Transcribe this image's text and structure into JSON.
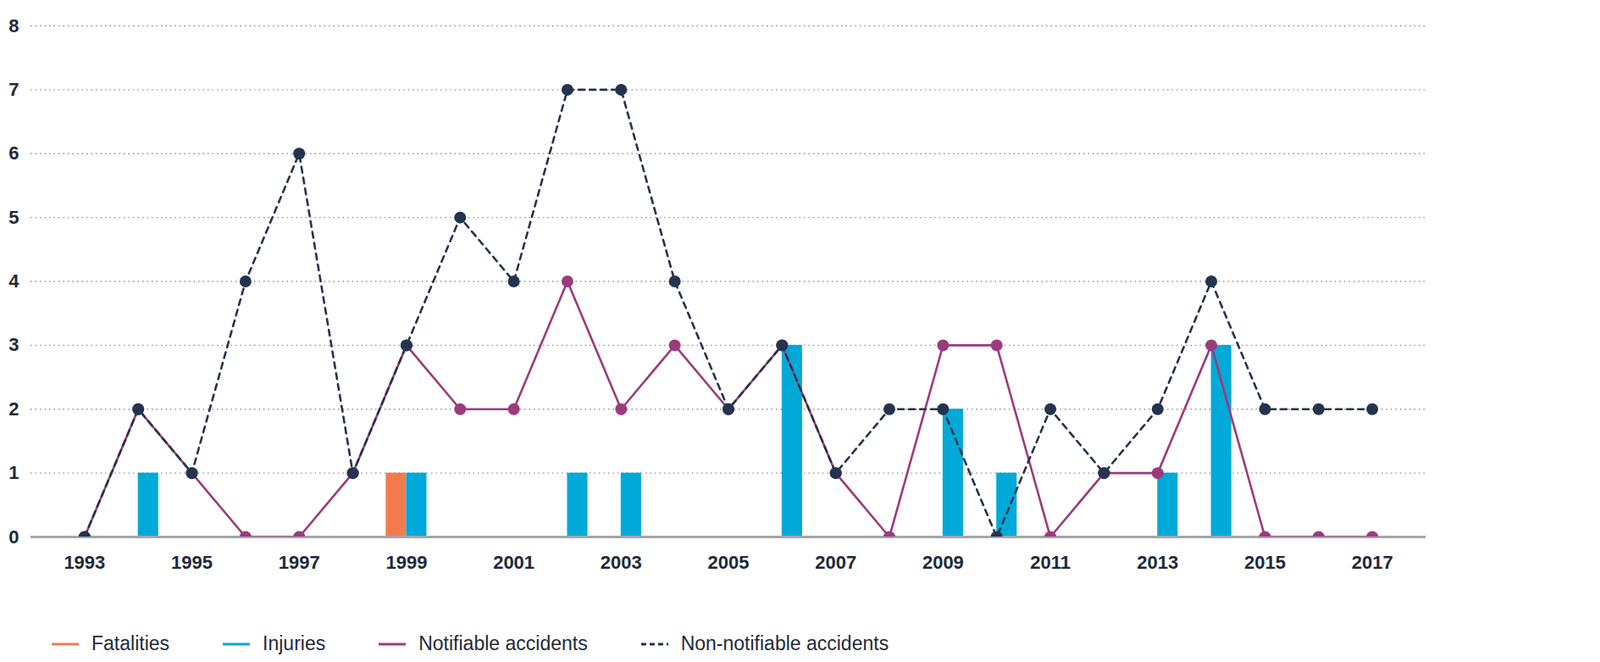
{
  "chart_data": {
    "type": "combo",
    "x": [
      1993,
      1994,
      1995,
      1996,
      1997,
      1998,
      1999,
      2000,
      2001,
      2002,
      2003,
      2004,
      2005,
      2006,
      2007,
      2008,
      2009,
      2010,
      2011,
      2012,
      2013,
      2014,
      2015,
      2016,
      2017
    ],
    "xlim": [
      1992,
      2018
    ],
    "xticks": [
      1993,
      1995,
      1997,
      1999,
      2001,
      2003,
      2005,
      2007,
      2009,
      2011,
      2013,
      2015,
      2017
    ],
    "ylim": [
      0,
      8
    ],
    "yticks": [
      0,
      1,
      2,
      3,
      4,
      5,
      6,
      7,
      8
    ],
    "grid": true,
    "legend": "bottom",
    "series": [
      {
        "name": "Fatalities",
        "type": "bar",
        "color": "#f27b50",
        "values": [
          0,
          0,
          0,
          0,
          0,
          0,
          1,
          0,
          0,
          0,
          0,
          0,
          0,
          0,
          0,
          0,
          0,
          0,
          0,
          0,
          0,
          0,
          0,
          0,
          0
        ]
      },
      {
        "name": "Injuries",
        "type": "bar",
        "color": "#00a9d8",
        "values": [
          0,
          1,
          0,
          0,
          0,
          0,
          1,
          0,
          0,
          1,
          1,
          0,
          0,
          3,
          0,
          0,
          2,
          1,
          0,
          0,
          1,
          3,
          0,
          0,
          0
        ]
      },
      {
        "name": "Notifiable accidents",
        "type": "line",
        "color": "#9c3b7c",
        "line_style": "solid",
        "marker": "circle",
        "values": [
          0,
          2,
          1,
          0,
          0,
          1,
          3,
          2,
          2,
          4,
          2,
          3,
          2,
          3,
          1,
          0,
          3,
          3,
          0,
          1,
          1,
          3,
          0,
          0,
          0
        ]
      },
      {
        "name": "Non-notifiable accidents",
        "type": "line",
        "color": "#24344f",
        "line_style": "dashed",
        "marker": "circle",
        "values": [
          0,
          2,
          1,
          4,
          6,
          1,
          3,
          5,
          4,
          7,
          7,
          4,
          2,
          3,
          1,
          2,
          2,
          0,
          2,
          1,
          2,
          4,
          2,
          2,
          2
        ]
      }
    ]
  }
}
